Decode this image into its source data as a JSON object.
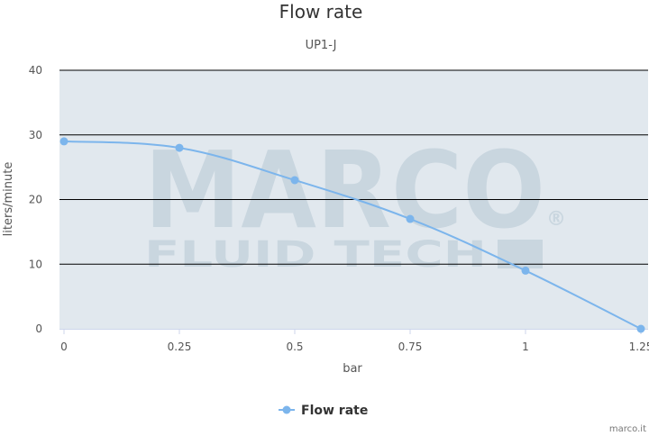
{
  "chart_data": {
    "type": "line",
    "title": "Flow rate",
    "subtitle": "UP1-J",
    "xlabel": "bar",
    "ylabel": "liters/minute",
    "xlim": [
      0,
      1.25
    ],
    "ylim": [
      0,
      40
    ],
    "x_ticks": [
      "0",
      "0.25",
      "0.5",
      "0.75",
      "1",
      "1.25"
    ],
    "y_ticks": [
      "0",
      "10",
      "20",
      "30",
      "40"
    ],
    "grid": true,
    "legend_position": "bottom-center",
    "series": [
      {
        "name": "Flow rate",
        "color": "#7cb5ec",
        "x": [
          0,
          0.25,
          0.5,
          0.75,
          1,
          1.25
        ],
        "y": [
          29,
          28,
          23,
          17,
          9,
          0
        ]
      }
    ]
  },
  "watermark": {
    "brand": "MARCO",
    "tagline": "FLUID TECH",
    "mark": "®"
  },
  "credit": "marco.it",
  "colors": {
    "plot_background": "#e1e8ee",
    "gridline": "#000000",
    "series": "#7cb5ec",
    "watermark": "#c9d6df"
  }
}
